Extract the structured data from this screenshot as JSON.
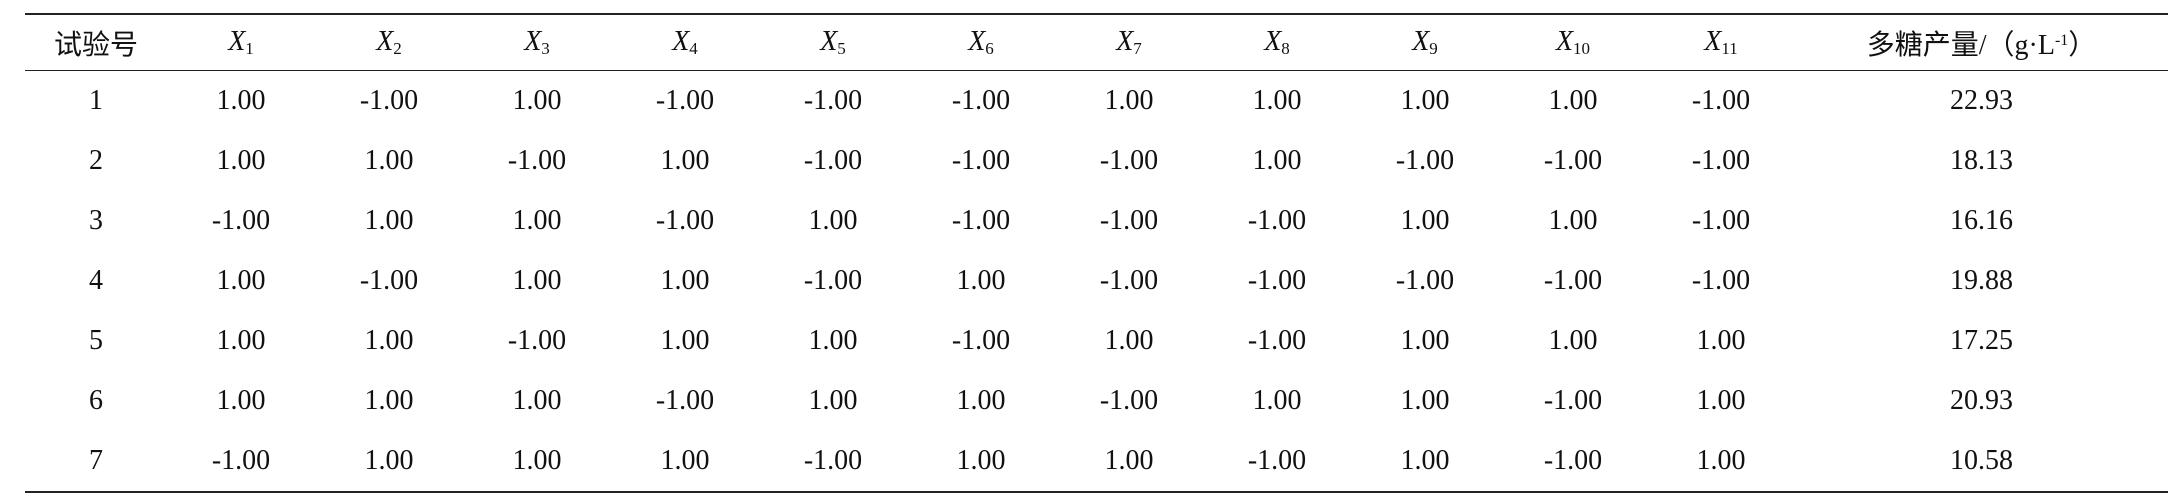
{
  "table": {
    "header": [
      {
        "main": "试验号"
      },
      {
        "main": "X",
        "sub": "1"
      },
      {
        "main": "X",
        "sub": "2"
      },
      {
        "main": "X",
        "sub": "3"
      },
      {
        "main": "X",
        "sub": "4"
      },
      {
        "main": "X",
        "sub": "5"
      },
      {
        "main": "X",
        "sub": "6"
      },
      {
        "main": "X",
        "sub": "7"
      },
      {
        "main": "X",
        "sub": "8"
      },
      {
        "main": "X",
        "sub": "9"
      },
      {
        "main": "X",
        "sub": "10"
      },
      {
        "main": "X",
        "sub": "11"
      },
      {
        "main": "多糖产量/（g·L",
        "sup": "-1",
        "tail": "）"
      }
    ],
    "rows": [
      [
        "1",
        "1.00",
        "-1.00",
        "1.00",
        "-1.00",
        "-1.00",
        "-1.00",
        "1.00",
        "1.00",
        "1.00",
        "1.00",
        "-1.00",
        "22.93"
      ],
      [
        "2",
        "1.00",
        "1.00",
        "-1.00",
        "1.00",
        "-1.00",
        "-1.00",
        "-1.00",
        "1.00",
        "-1.00",
        "-1.00",
        "-1.00",
        "18.13"
      ],
      [
        "3",
        "-1.00",
        "1.00",
        "1.00",
        "-1.00",
        "1.00",
        "-1.00",
        "-1.00",
        "-1.00",
        "1.00",
        "1.00",
        "-1.00",
        "16.16"
      ],
      [
        "4",
        "1.00",
        "-1.00",
        "1.00",
        "1.00",
        "-1.00",
        "1.00",
        "-1.00",
        "-1.00",
        "-1.00",
        "-1.00",
        "-1.00",
        "19.88"
      ],
      [
        "5",
        "1.00",
        "1.00",
        "-1.00",
        "1.00",
        "1.00",
        "-1.00",
        "1.00",
        "-1.00",
        "1.00",
        "1.00",
        "1.00",
        "17.25"
      ],
      [
        "6",
        "1.00",
        "1.00",
        "1.00",
        "-1.00",
        "1.00",
        "1.00",
        "-1.00",
        "1.00",
        "1.00",
        "-1.00",
        "1.00",
        "20.93"
      ],
      [
        "7",
        "-1.00",
        "1.00",
        "1.00",
        "1.00",
        "-1.00",
        "1.00",
        "1.00",
        "-1.00",
        "1.00",
        "-1.00",
        "1.00",
        "10.58"
      ]
    ]
  }
}
